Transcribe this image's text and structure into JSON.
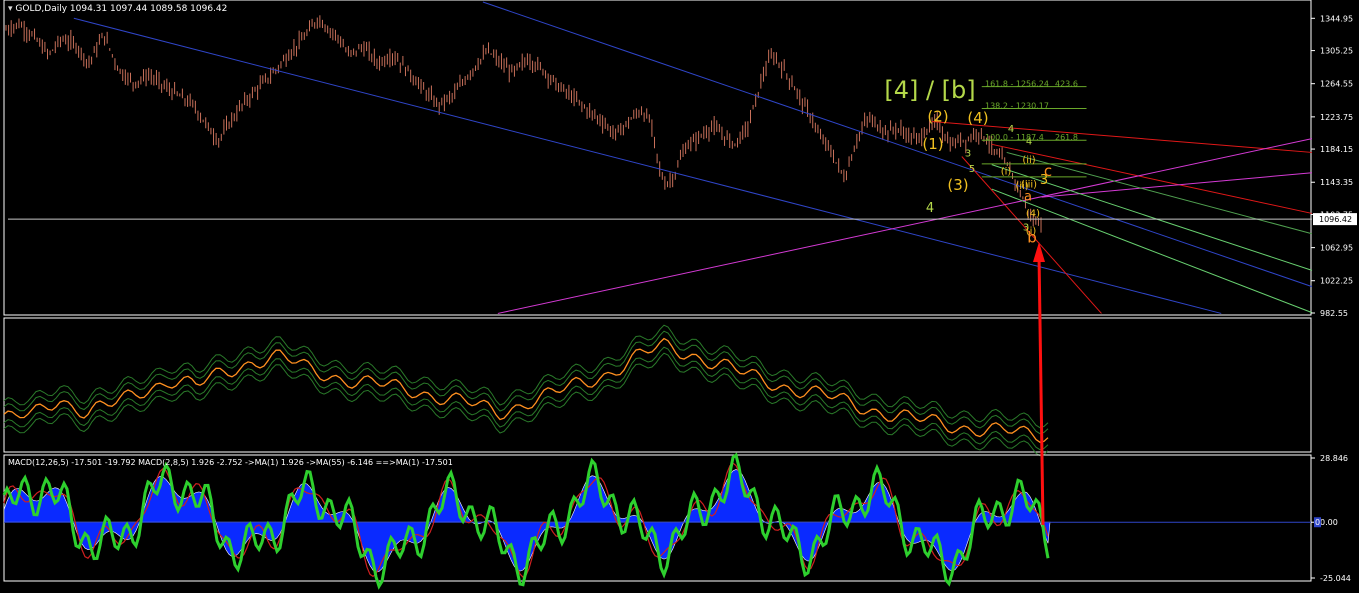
{
  "window": {
    "symbol_label": "GOLD,Daily",
    "ohlc": "1094.31 1097.44 1089.58 1096.42"
  },
  "colors": {
    "background": "#000000",
    "candle": "#c8705a",
    "axis": "#ffffff",
    "blue_line": "#2f45c8",
    "magenta_line": "#d43ad4",
    "red_line": "#e01818",
    "green_line": "#68d070",
    "fib": "#6aa82a",
    "orange": "#ff9020",
    "macd_fill": "#0a2aff",
    "macd_green": "#2ed02e",
    "arrow": "#ff1010",
    "wave_yellow": "#f0c020",
    "wave_lime": "#b4d84a"
  },
  "chart_data": [
    {
      "type": "candlestick",
      "title": "GOLD,Daily",
      "ylim": [
        982.55,
        1365
      ],
      "yticks": [
        "1344.95",
        "1305.25",
        "1264.55",
        "1223.75",
        "1184.15",
        "1143.35",
        "1103.75",
        "1062.95",
        "1022.25",
        "982.55"
      ],
      "current_price": "1096.42",
      "close_path": [
        [
          0,
          1330
        ],
        [
          15,
          1338
        ],
        [
          30,
          1322
        ],
        [
          45,
          1300
        ],
        [
          58,
          1320
        ],
        [
          72,
          1312
        ],
        [
          85,
          1290
        ],
        [
          100,
          1325
        ],
        [
          115,
          1282
        ],
        [
          130,
          1265
        ],
        [
          145,
          1275
        ],
        [
          160,
          1262
        ],
        [
          175,
          1250
        ],
        [
          190,
          1238
        ],
        [
          205,
          1210
        ],
        [
          215,
          1195
        ],
        [
          225,
          1215
        ],
        [
          240,
          1240
        ],
        [
          255,
          1260
        ],
        [
          270,
          1278
        ],
        [
          285,
          1300
        ],
        [
          300,
          1320
        ],
        [
          315,
          1345
        ],
        [
          325,
          1332
        ],
        [
          335,
          1322
        ],
        [
          345,
          1300
        ],
        [
          360,
          1310
        ],
        [
          375,
          1290
        ],
        [
          390,
          1300
        ],
        [
          405,
          1280
        ],
        [
          420,
          1258
        ],
        [
          435,
          1238
        ],
        [
          450,
          1250
        ],
        [
          462,
          1270
        ],
        [
          475,
          1290
        ],
        [
          485,
          1305
        ],
        [
          498,
          1290
        ],
        [
          510,
          1278
        ],
        [
          525,
          1295
        ],
        [
          540,
          1282
        ],
        [
          555,
          1262
        ],
        [
          570,
          1248
        ],
        [
          585,
          1232
        ],
        [
          600,
          1218
        ],
        [
          612,
          1202
        ],
        [
          620,
          1210
        ],
        [
          628,
          1220
        ],
        [
          638,
          1232
        ],
        [
          648,
          1218
        ],
        [
          657,
          1160
        ],
        [
          663,
          1140
        ],
        [
          672,
          1152
        ],
        [
          682,
          1185
        ],
        [
          696,
          1198
        ],
        [
          710,
          1212
        ],
        [
          722,
          1200
        ],
        [
          732,
          1190
        ],
        [
          745,
          1210
        ],
        [
          755,
          1250
        ],
        [
          762,
          1280
        ],
        [
          770,
          1300
        ],
        [
          780,
          1285
        ],
        [
          790,
          1265
        ],
        [
          800,
          1242
        ],
        [
          810,
          1222
        ],
        [
          818,
          1198
        ],
        [
          826,
          1188
        ],
        [
          834,
          1168
        ],
        [
          843,
          1148
        ],
        [
          850,
          1178
        ],
        [
          858,
          1205
        ],
        [
          866,
          1222
        ],
        [
          875,
          1214
        ],
        [
          885,
          1205
        ],
        [
          895,
          1210
        ],
        [
          905,
          1202
        ],
        [
          915,
          1196
        ],
        [
          925,
          1208
        ],
        [
          935,
          1218
        ],
        [
          942,
          1202
        ],
        [
          950,
          1188
        ],
        [
          958,
          1196
        ],
        [
          966,
          1195
        ],
        [
          975,
          1206
        ],
        [
          984,
          1198
        ],
        [
          992,
          1182
        ],
        [
          1000,
          1172
        ],
        [
          1008,
          1160
        ],
        [
          1016,
          1138
        ],
        [
          1024,
          1115
        ],
        [
          1032,
          1094
        ],
        [
          1040,
          1096
        ]
      ],
      "wave_labels": [
        {
          "text": "[4] / [b]",
          "color": "lime",
          "x": 1240,
          "y": 1247,
          "size": 24
        },
        {
          "text": "(2)",
          "color": "yellow",
          "x": 1208,
          "y": 1218,
          "size": 15
        },
        {
          "text": "(4)",
          "color": "yellow",
          "x": 1211,
          "y": 1216,
          "size": 15
        },
        {
          "text": "(1)",
          "color": "yellow",
          "x": 1175,
          "y": 1184,
          "size": 15
        },
        {
          "text": "(3)",
          "color": "yellow",
          "x": 1180,
          "y": 1134,
          "size": 15
        },
        {
          "text": "4",
          "color": "lime",
          "x": 1211,
          "y": 1205,
          "size": 10
        },
        {
          "text": "3",
          "color": "lime",
          "x": 1168,
          "y": 1175,
          "size": 10
        },
        {
          "text": "5",
          "color": "lime",
          "x": 1172,
          "y": 1156,
          "size": 10
        },
        {
          "text": "4",
          "color": "lime",
          "x": 1229,
          "y": 1190,
          "size": 10
        },
        {
          "text": "3",
          "color": "lime",
          "x": 1226,
          "y": 1084,
          "size": 10
        },
        {
          "text": "c",
          "color": "orange",
          "x": 1248,
          "y": 1151,
          "size": 15
        },
        {
          "text": "a",
          "color": "orange",
          "x": 1228,
          "y": 1121,
          "size": 13
        },
        {
          "text": "b",
          "color": "orange",
          "x": 1232,
          "y": 1069,
          "size": 15
        },
        {
          "text": "4",
          "color": "lime",
          "x": 1240,
          "y": 1107,
          "size": 13
        },
        {
          "text": "3",
          "color": "yellow",
          "x": 1244,
          "y": 1141,
          "size": 13
        },
        {
          "text": "(ii)",
          "color": "yellow",
          "x": 1222,
          "y": 1135,
          "size": 10
        },
        {
          "text": "(i)",
          "color": "yellow",
          "x": 1206,
          "y": 1153,
          "size": 10
        },
        {
          "text": "(ii)",
          "color": "yellow",
          "x": 1229,
          "y": 1167,
          "size": 10
        },
        {
          "text": "(iii)",
          "color": "yellow",
          "x": 1229,
          "y": 1137,
          "size": 10
        },
        {
          "text": "(4)",
          "color": "yellow",
          "x": 1233,
          "y": 1101,
          "size": 10
        },
        {
          "text": "(i)",
          "color": "yellow",
          "x": 1231,
          "y": 1080,
          "size": 10
        }
      ],
      "fib_labels": [
        {
          "text": "161.8 - 1256.24",
          "y": 1261
        },
        {
          "text": "423.6",
          "y": 1261
        },
        {
          "text": "138.2 - 1230.17",
          "y": 1234
        },
        {
          "text": "100.0 - 1187.4",
          "y": 1195
        },
        {
          "text": "261.8",
          "y": 1195
        }
      ]
    },
    {
      "type": "line",
      "title": "",
      "series": [
        {
          "values": [
            10,
            12,
            22,
            14,
            18,
            26,
            32,
            28,
            36,
            42,
            44,
            38,
            34,
            30,
            28,
            26,
            22,
            18,
            14,
            20,
            24,
            30,
            36,
            44,
            50,
            46,
            40,
            34,
            30,
            26,
            22,
            18,
            14,
            10,
            8,
            6,
            4,
            2,
            2
          ]
        }
      ]
    },
    {
      "type": "area",
      "title": "MACD(12,26,5) -17.501 -19.792  MACD(2,8,5) 1.926 -2.752  ->MA(1) 1.926  ->MA(55) -6.146  ==>MA(1) -17.501",
      "ylim": [
        -25.044,
        28.846
      ],
      "yticks": [
        "28.846",
        "0.00",
        "-25.044"
      ],
      "zero_tag": "0"
    }
  ]
}
